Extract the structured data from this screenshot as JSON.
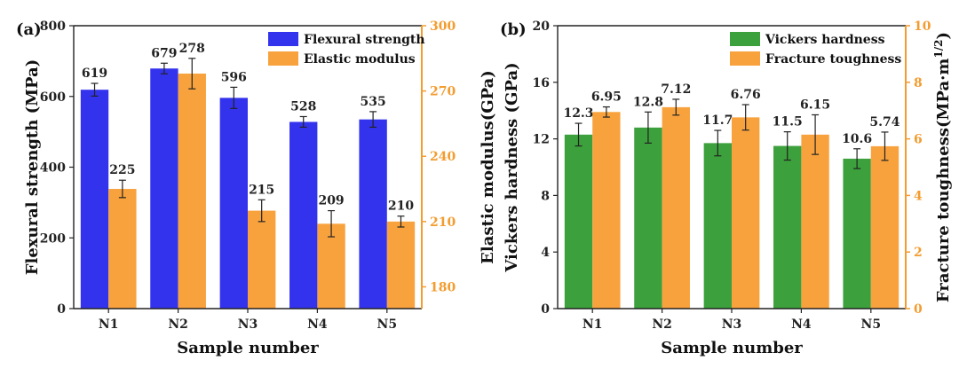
{
  "chart_data": [
    {
      "type": "bar",
      "panel_label": "(a)",
      "xlabel": "Sample number",
      "categories": [
        "N1",
        "N2",
        "N3",
        "N4",
        "N5"
      ],
      "y_left": {
        "label": "Flexural strength (MPa)",
        "range": [
          0,
          800
        ],
        "ticks": [
          0,
          200,
          400,
          600,
          800
        ],
        "color": "#000000"
      },
      "y_right": {
        "label": "Elastic modulus(GPa)",
        "range": [
          170,
          300
        ],
        "ticks": [
          180,
          210,
          240,
          270,
          300
        ],
        "color": "#f39c30"
      },
      "series": [
        {
          "name": "Flexural strength",
          "axis": "left",
          "color": "#3333ee",
          "values": [
            619,
            679,
            596,
            528,
            535
          ],
          "errors": [
            18,
            15,
            30,
            15,
            22
          ],
          "labels": [
            "619",
            "679",
            "596",
            "528",
            "535"
          ]
        },
        {
          "name": "Elastic modulus",
          "axis": "right",
          "color": "#f8a23e",
          "values": [
            225,
            278,
            215,
            209,
            210
          ],
          "errors": [
            4,
            7,
            5,
            6,
            2.5
          ],
          "labels": [
            "225",
            "278",
            "215",
            "209",
            "210"
          ]
        }
      ],
      "legend_position": "top-right"
    },
    {
      "type": "bar",
      "panel_label": "(b)",
      "xlabel": "Sample number",
      "categories": [
        "N1",
        "N2",
        "N3",
        "N4",
        "N5"
      ],
      "y_left": {
        "label": "Vickers hardness (GPa)",
        "range": [
          0,
          20
        ],
        "ticks": [
          0,
          4,
          8,
          12,
          16,
          20
        ],
        "color": "#000000"
      },
      "y_right": {
        "label": "Fracture toughness(MPa·m",
        "label_sup": "1/2",
        "label_tail": ")",
        "range": [
          0,
          10
        ],
        "ticks": [
          0,
          2,
          4,
          6,
          8,
          10
        ],
        "color": "#f39c30"
      },
      "series": [
        {
          "name": "Vickers hardness",
          "axis": "left",
          "color": "#3ca03c",
          "values": [
            12.3,
            12.8,
            11.7,
            11.5,
            10.6
          ],
          "errors": [
            0.8,
            1.1,
            0.9,
            1.0,
            0.7
          ],
          "labels": [
            "12.3",
            "12.8",
            "11.7",
            "11.5",
            "10.6"
          ]
        },
        {
          "name": "Fracture toughness",
          "axis": "right",
          "color": "#f8a23e",
          "values": [
            6.95,
            7.12,
            6.76,
            6.15,
            5.74
          ],
          "errors": [
            0.18,
            0.28,
            0.45,
            0.7,
            0.5
          ],
          "labels": [
            "6.95",
            "7.12",
            "6.76",
            "6.15",
            "5.74"
          ]
        }
      ],
      "legend_position": "top-right"
    }
  ]
}
